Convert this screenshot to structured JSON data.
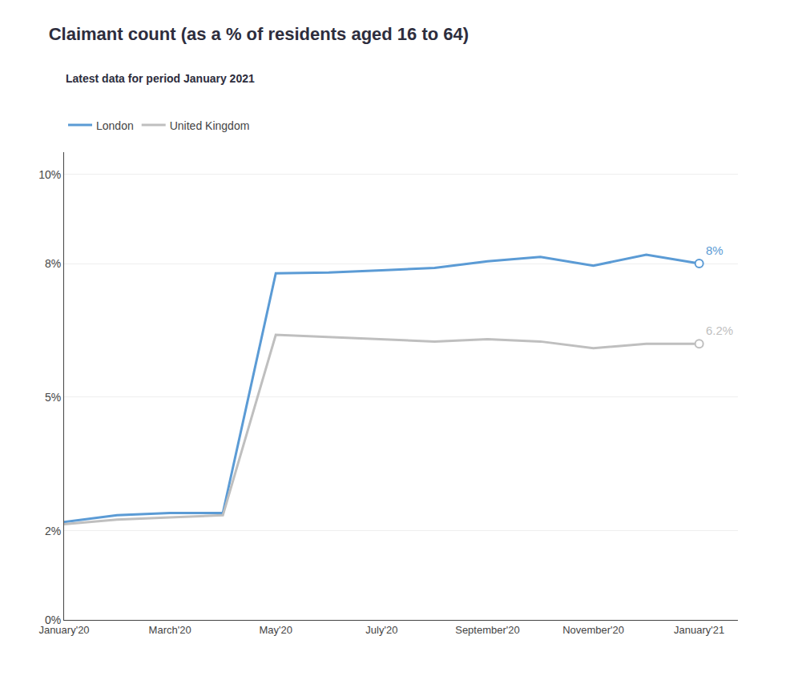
{
  "chart_data": {
    "type": "line",
    "title": "Claimant count (as a % of residents aged 16 to 64)",
    "subtitle": "Latest data for period January 2021",
    "categories": [
      "January'20",
      null,
      "March'20",
      null,
      "May'20",
      null,
      "July'20",
      null,
      "September'20",
      null,
      "November'20",
      null,
      "January'21"
    ],
    "series": [
      {
        "name": "London",
        "color": "#5B9BD5",
        "values": [
          2.2,
          2.35,
          2.4,
          2.4,
          7.78,
          7.8,
          7.85,
          7.9,
          8.05,
          8.15,
          7.95,
          8.2,
          8.0
        ]
      },
      {
        "name": "United Kingdom",
        "color": "#BFBFBF",
        "values": [
          2.15,
          2.25,
          2.3,
          2.35,
          6.4,
          6.35,
          6.3,
          6.25,
          6.3,
          6.25,
          6.1,
          6.2,
          6.2
        ]
      }
    ],
    "ylim": [
      0,
      10.5
    ],
    "yticks": [
      {
        "value": 0,
        "label": "0%"
      },
      {
        "value": 2,
        "label": "2%"
      },
      {
        "value": 5,
        "label": "5%"
      },
      {
        "value": 8,
        "label": "8%"
      },
      {
        "value": 10,
        "label": "10%"
      }
    ],
    "grid": true,
    "legend": "top-left",
    "annotations": [
      {
        "text": "8%",
        "series": "London"
      },
      {
        "text": "6.2%",
        "series": "United Kingdom"
      }
    ]
  }
}
